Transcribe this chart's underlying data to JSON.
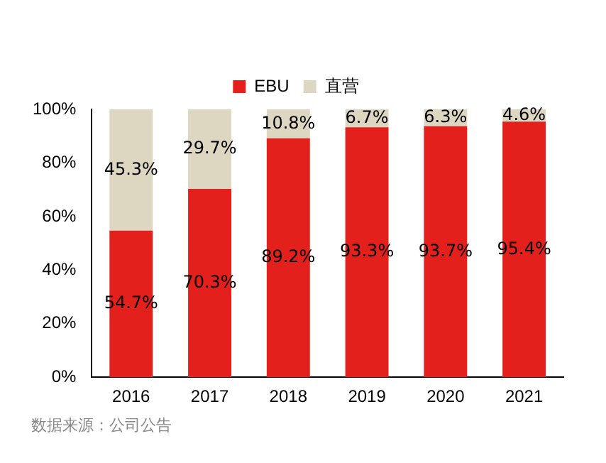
{
  "chart_data": {
    "type": "bar",
    "stacked": true,
    "categories": [
      "2016",
      "2017",
      "2018",
      "2019",
      "2020",
      "2021"
    ],
    "series": [
      {
        "name": "EBU",
        "color": "#e3201b",
        "values": [
          54.7,
          70.3,
          89.2,
          93.3,
          93.7,
          95.4
        ],
        "value_labels": [
          "54.7%",
          "70.3%",
          "89.2%",
          "93.3%",
          "93.7%",
          "95.4%"
        ]
      },
      {
        "name": "直营",
        "color": "#ddd6c1",
        "values": [
          45.3,
          29.7,
          10.8,
          6.7,
          6.3,
          4.6
        ],
        "value_labels": [
          "45.3%",
          "29.7%",
          "10.8%",
          "6.7%",
          "6.3%",
          "4.6%"
        ]
      }
    ],
    "ylim": [
      0,
      100
    ],
    "yticks": [
      {
        "value": 0,
        "label": "0%"
      },
      {
        "value": 20,
        "label": "20%"
      },
      {
        "value": 40,
        "label": "40%"
      },
      {
        "value": 60,
        "label": "60%"
      },
      {
        "value": 80,
        "label": "80%"
      },
      {
        "value": 100,
        "label": "100%"
      }
    ],
    "grid": false,
    "legend": "top",
    "annotations": [
      "数据来源：公司公告"
    ]
  }
}
